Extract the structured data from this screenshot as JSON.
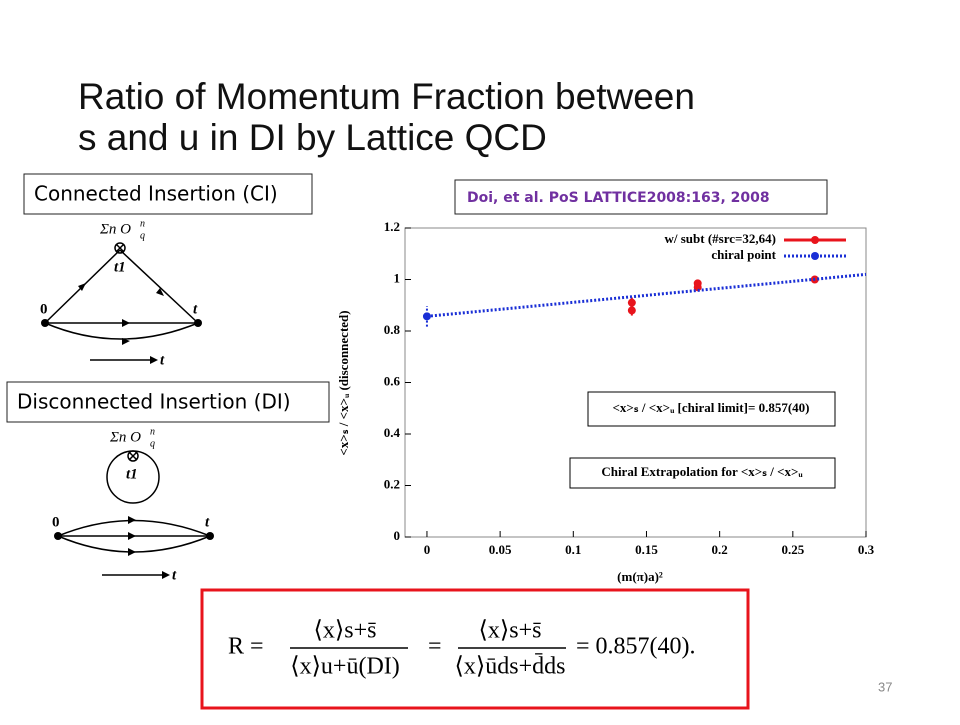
{
  "slide": {
    "title_lines": [
      "Ratio of Momentum Fraction between",
      "s and u in DI by Lattice QCD"
    ],
    "ci_label": "Connected Insertion (CI)",
    "di_label": "Disconnected Insertion (DI)",
    "citation": "Doi, et al. PoS LATTICE2008:163, 2008",
    "page_number": "37",
    "ci_diagram": {
      "operator": "Σn O",
      "operator_sup": "n",
      "operator_sub": "q",
      "vertex": "t1",
      "start": "0",
      "end": "t",
      "time_arrow": "t"
    },
    "di_diagram": {
      "operator": "Σn O",
      "operator_sup": "n",
      "operator_sub": "q",
      "vertex": "t1",
      "start": "0",
      "end": "t",
      "time_arrow": "t"
    },
    "formula": {
      "lhs": "R =",
      "num1": "⟨x⟩s+s̄",
      "den1": "⟨x⟩u+ū(DI)",
      "eq2": "=",
      "num2": "⟨x⟩s+s̄",
      "den2": "⟨x⟩ūds+d̄ds",
      "rhs": "= 0.857(40)."
    }
  },
  "chart_data": {
    "type": "scatter",
    "xlabel": "(m(π)a)²",
    "ylabel": "<x>ₛ / <x>ᵤ (disconnected)",
    "annotations": [
      "<x>ₛ / <x>ᵤ [chiral limit]= 0.857(40)",
      "Chiral Extrapolation for <x>ₛ / <x>ᵤ"
    ],
    "xlim": [
      -0.015,
      0.3
    ],
    "ylim": [
      0,
      1.2
    ],
    "xticks": [
      0,
      0.05,
      0.1,
      0.15,
      0.2,
      0.25,
      0.3
    ],
    "yticks": [
      0,
      0.2,
      0.4,
      0.6,
      0.8,
      1,
      1.2
    ],
    "legend": "top-right",
    "series": [
      {
        "name": "w/ subt (#src=32,64)",
        "color": "#e8141c",
        "x": [
          0.14,
          0.14,
          0.185,
          0.185,
          0.265
        ],
        "values": [
          0.88,
          0.91,
          0.97,
          0.985,
          1.0
        ],
        "errors": [
          0.02,
          0.02,
          0.015,
          0.015,
          0.01
        ]
      },
      {
        "name": "chiral point",
        "color": "#1a2fd6",
        "x": [
          0
        ],
        "values": [
          0.857
        ],
        "errors": [
          0.04
        ],
        "line_x": [
          0,
          0.3
        ],
        "line_y": [
          0.857,
          1.02
        ]
      }
    ]
  }
}
